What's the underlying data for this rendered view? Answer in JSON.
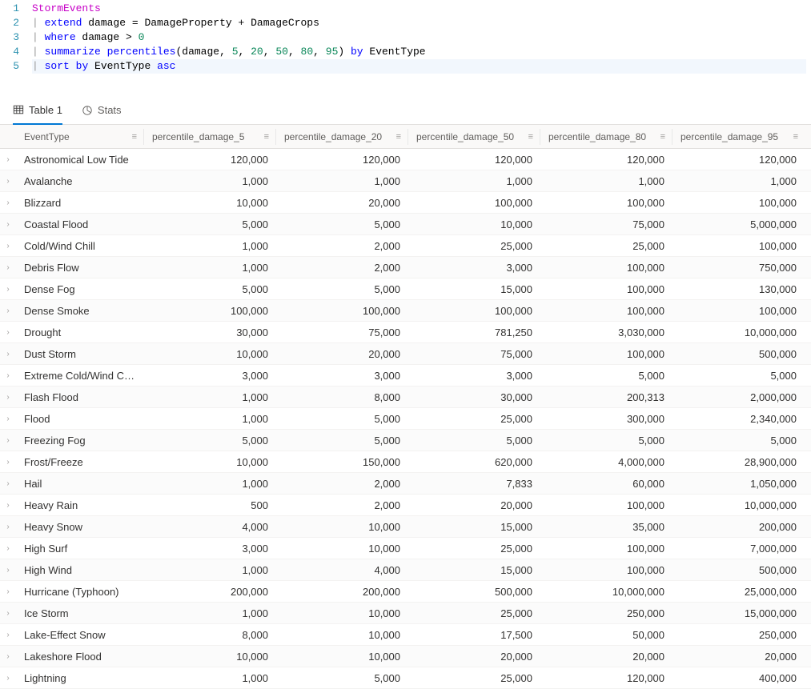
{
  "editor": {
    "lines": [
      {
        "num": "1",
        "tokens": [
          {
            "t": "StormEvents",
            "c": "tk-ident"
          }
        ],
        "hl": false
      },
      {
        "num": "2",
        "tokens": [
          {
            "t": "| ",
            "c": "tk-pipe"
          },
          {
            "t": "extend",
            "c": "tk-keyword"
          },
          {
            "t": " damage ",
            "c": "tk-plain"
          },
          {
            "t": "=",
            "c": "tk-plain"
          },
          {
            "t": " DamageProperty ",
            "c": "tk-plain"
          },
          {
            "t": "+",
            "c": "tk-plain"
          },
          {
            "t": " DamageCrops",
            "c": "tk-plain"
          }
        ],
        "hl": false
      },
      {
        "num": "3",
        "tokens": [
          {
            "t": "| ",
            "c": "tk-pipe"
          },
          {
            "t": "where",
            "c": "tk-keyword"
          },
          {
            "t": " damage ",
            "c": "tk-plain"
          },
          {
            "t": ">",
            "c": "tk-plain"
          },
          {
            "t": " ",
            "c": "tk-plain"
          },
          {
            "t": "0",
            "c": "tk-num"
          }
        ],
        "hl": false
      },
      {
        "num": "4",
        "tokens": [
          {
            "t": "| ",
            "c": "tk-pipe"
          },
          {
            "t": "summarize",
            "c": "tk-keyword"
          },
          {
            "t": " ",
            "c": "tk-plain"
          },
          {
            "t": "percentiles",
            "c": "tk-func"
          },
          {
            "t": "(damage, ",
            "c": "tk-plain"
          },
          {
            "t": "5",
            "c": "tk-num"
          },
          {
            "t": ", ",
            "c": "tk-plain"
          },
          {
            "t": "20",
            "c": "tk-num"
          },
          {
            "t": ", ",
            "c": "tk-plain"
          },
          {
            "t": "50",
            "c": "tk-num"
          },
          {
            "t": ", ",
            "c": "tk-plain"
          },
          {
            "t": "80",
            "c": "tk-num"
          },
          {
            "t": ", ",
            "c": "tk-plain"
          },
          {
            "t": "95",
            "c": "tk-num"
          },
          {
            "t": ") ",
            "c": "tk-plain"
          },
          {
            "t": "by",
            "c": "tk-keyword"
          },
          {
            "t": " EventType",
            "c": "tk-plain"
          }
        ],
        "hl": false
      },
      {
        "num": "5",
        "tokens": [
          {
            "t": "| ",
            "c": "tk-pipe"
          },
          {
            "t": "sort",
            "c": "tk-keyword"
          },
          {
            "t": " ",
            "c": "tk-plain"
          },
          {
            "t": "by",
            "c": "tk-keyword"
          },
          {
            "t": " EventType ",
            "c": "tk-plain"
          },
          {
            "t": "asc",
            "c": "tk-keyword"
          }
        ],
        "hl": true
      }
    ]
  },
  "tabs": {
    "table_label": "Table 1",
    "stats_label": "Stats"
  },
  "grid": {
    "columns": [
      {
        "label": "EventType",
        "numeric": false
      },
      {
        "label": "percentile_damage_5",
        "numeric": true
      },
      {
        "label": "percentile_damage_20",
        "numeric": true
      },
      {
        "label": "percentile_damage_50",
        "numeric": true
      },
      {
        "label": "percentile_damage_80",
        "numeric": true
      },
      {
        "label": "percentile_damage_95",
        "numeric": true
      }
    ],
    "rows": [
      [
        "Astronomical Low Tide",
        "120,000",
        "120,000",
        "120,000",
        "120,000",
        "120,000"
      ],
      [
        "Avalanche",
        "1,000",
        "1,000",
        "1,000",
        "1,000",
        "1,000"
      ],
      [
        "Blizzard",
        "10,000",
        "20,000",
        "100,000",
        "100,000",
        "100,000"
      ],
      [
        "Coastal Flood",
        "5,000",
        "5,000",
        "10,000",
        "75,000",
        "5,000,000"
      ],
      [
        "Cold/Wind Chill",
        "1,000",
        "2,000",
        "25,000",
        "25,000",
        "100,000"
      ],
      [
        "Debris Flow",
        "1,000",
        "2,000",
        "3,000",
        "100,000",
        "750,000"
      ],
      [
        "Dense Fog",
        "5,000",
        "5,000",
        "15,000",
        "100,000",
        "130,000"
      ],
      [
        "Dense Smoke",
        "100,000",
        "100,000",
        "100,000",
        "100,000",
        "100,000"
      ],
      [
        "Drought",
        "30,000",
        "75,000",
        "781,250",
        "3,030,000",
        "10,000,000"
      ],
      [
        "Dust Storm",
        "10,000",
        "20,000",
        "75,000",
        "100,000",
        "500,000"
      ],
      [
        "Extreme Cold/Wind Chill",
        "3,000",
        "3,000",
        "3,000",
        "5,000",
        "5,000"
      ],
      [
        "Flash Flood",
        "1,000",
        "8,000",
        "30,000",
        "200,313",
        "2,000,000"
      ],
      [
        "Flood",
        "1,000",
        "5,000",
        "25,000",
        "300,000",
        "2,340,000"
      ],
      [
        "Freezing Fog",
        "5,000",
        "5,000",
        "5,000",
        "5,000",
        "5,000"
      ],
      [
        "Frost/Freeze",
        "10,000",
        "150,000",
        "620,000",
        "4,000,000",
        "28,900,000"
      ],
      [
        "Hail",
        "1,000",
        "2,000",
        "7,833",
        "60,000",
        "1,050,000"
      ],
      [
        "Heavy Rain",
        "500",
        "2,000",
        "20,000",
        "100,000",
        "10,000,000"
      ],
      [
        "Heavy Snow",
        "4,000",
        "10,000",
        "15,000",
        "35,000",
        "200,000"
      ],
      [
        "High Surf",
        "3,000",
        "10,000",
        "25,000",
        "100,000",
        "7,000,000"
      ],
      [
        "High Wind",
        "1,000",
        "4,000",
        "15,000",
        "100,000",
        "500,000"
      ],
      [
        "Hurricane (Typhoon)",
        "200,000",
        "200,000",
        "500,000",
        "10,000,000",
        "25,000,000"
      ],
      [
        "Ice Storm",
        "1,000",
        "10,000",
        "25,000",
        "250,000",
        "15,000,000"
      ],
      [
        "Lake-Effect Snow",
        "8,000",
        "10,000",
        "17,500",
        "50,000",
        "250,000"
      ],
      [
        "Lakeshore Flood",
        "10,000",
        "10,000",
        "20,000",
        "20,000",
        "20,000"
      ],
      [
        "Lightning",
        "1,000",
        "5,000",
        "25,000",
        "120,000",
        "400,000"
      ]
    ]
  }
}
